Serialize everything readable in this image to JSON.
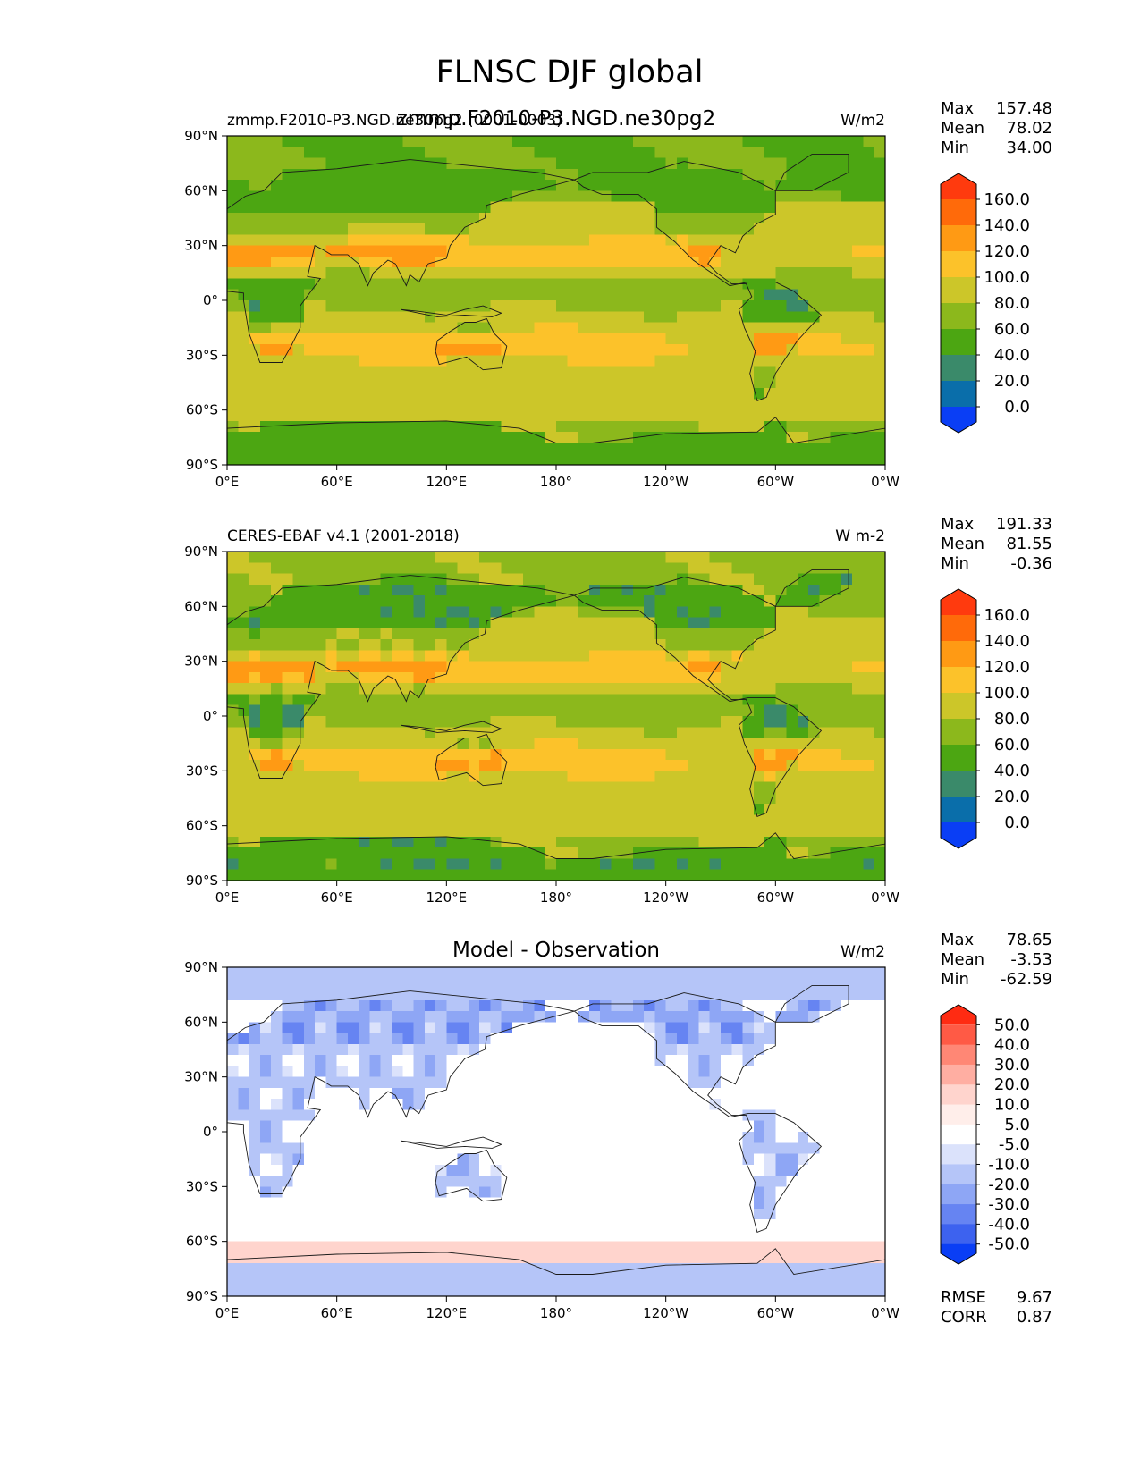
{
  "figure": {
    "title": "FLNSC DJF global"
  },
  "chart_data": [
    {
      "type": "heatmap",
      "title_center": "zmmp.F2010-P3.NGD.ne30pg2",
      "title_left": "zmmp.F2010-P3.NGD.ne30pg2 (0001-0003)",
      "units": "W/m2",
      "stats": {
        "Max": "157.48",
        "Mean": "78.02",
        "Min": "34.00"
      },
      "colorbar_labels": [
        "160.0",
        "140.0",
        "120.0",
        "100.0",
        "80.0",
        "60.0",
        "40.0",
        "20.0",
        "0.0"
      ],
      "colorbar_colors": [
        "#ff3a0e",
        "#ff6a0a",
        "#ff9a14",
        "#fcc22a",
        "#ccc629",
        "#8cb81c",
        "#4ca612",
        "#3a8a6a",
        "#0a6eaa",
        "#0a3ef5"
      ],
      "color_field": "sequential",
      "xticks": [
        "0°E",
        "60°E",
        "120°E",
        "180°",
        "120°W",
        "60°W",
        "0°W"
      ],
      "yticks": [
        "90°N",
        "60°N",
        "30°N",
        "0°",
        "30°S",
        "60°S",
        "90°S"
      ],
      "xlim": [
        0,
        360
      ],
      "ylim": [
        -90,
        90
      ]
    },
    {
      "type": "heatmap",
      "title_center": "",
      "title_left": "CERES-EBAF v4.1 (2001-2018)",
      "units": "W m-2",
      "stats": {
        "Max": "191.33",
        "Mean": "81.55",
        "Min": "-0.36"
      },
      "colorbar_labels": [
        "160.0",
        "140.0",
        "120.0",
        "100.0",
        "80.0",
        "60.0",
        "40.0",
        "20.0",
        "0.0"
      ],
      "colorbar_colors": [
        "#ff3a0e",
        "#ff6a0a",
        "#ff9a14",
        "#fcc22a",
        "#ccc629",
        "#8cb81c",
        "#4ca612",
        "#3a8a6a",
        "#0a6eaa",
        "#0a3ef5"
      ],
      "color_field": "sequential",
      "xticks": [
        "0°E",
        "60°E",
        "120°E",
        "180°",
        "120°W",
        "60°W",
        "0°W"
      ],
      "yticks": [
        "90°N",
        "60°N",
        "30°N",
        "0°",
        "30°S",
        "60°S",
        "90°S"
      ],
      "xlim": [
        0,
        360
      ],
      "ylim": [
        -90,
        90
      ]
    },
    {
      "type": "heatmap",
      "title_center": "Model - Observation",
      "title_left": "",
      "units": "W/m2",
      "stats": {
        "Max": "78.65",
        "Mean": "-3.53",
        "Min": "-62.59"
      },
      "colorbar_labels": [
        "50.0",
        "40.0",
        "30.0",
        "20.0",
        "10.0",
        "5.0",
        "-5.0",
        "-10.0",
        "-20.0",
        "-30.0",
        "-40.0",
        "-50.0"
      ],
      "colorbar_colors": [
        "#ff2b12",
        "#ff5a45",
        "#ff8775",
        "#ffaea2",
        "#ffd4cd",
        "#ffeeea",
        "#ffffff",
        "#dbe2fb",
        "#b5c5f8",
        "#8ea6f5",
        "#6684f2",
        "#3d62ef",
        "#0a3ef5"
      ],
      "color_field": "diverging",
      "xticks": [
        "0°E",
        "60°E",
        "120°E",
        "180°",
        "120°W",
        "60°W",
        "0°W"
      ],
      "yticks": [
        "90°N",
        "60°N",
        "30°N",
        "0°",
        "30°S",
        "60°S",
        "90°S"
      ],
      "xlim": [
        0,
        360
      ],
      "ylim": [
        -90,
        90
      ],
      "metrics": {
        "RMSE": "9.67",
        "CORR": "0.87"
      }
    }
  ]
}
